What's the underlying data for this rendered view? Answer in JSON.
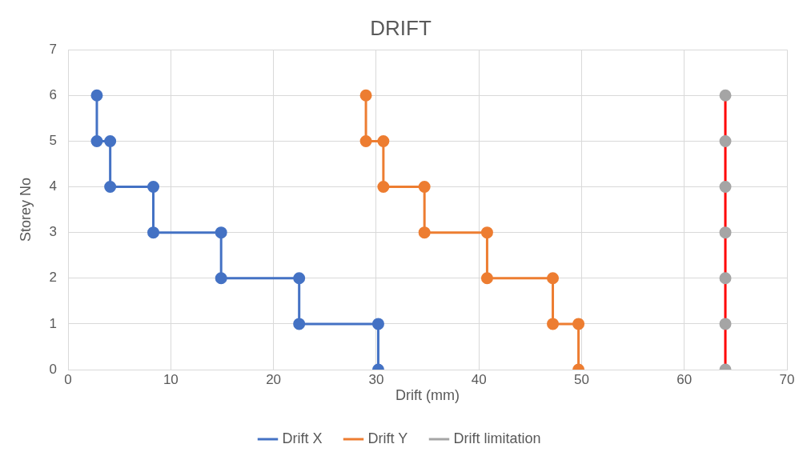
{
  "chart_data": {
    "type": "line",
    "title": "DRIFT",
    "xlabel": "Drift (mm)",
    "ylabel": "Storey No",
    "xlim": [
      0,
      70
    ],
    "xticks": [
      0,
      10,
      20,
      30,
      40,
      50,
      60,
      70
    ],
    "ylim": [
      0,
      7
    ],
    "yticks": [
      0,
      1,
      2,
      3,
      4,
      5,
      6,
      7
    ],
    "grid": true,
    "legend": "bottom",
    "marker": "circle",
    "line_style": "solid",
    "series": [
      {
        "name": "Drift X",
        "color": "#4472c4",
        "x": [
          30.2,
          30.2,
          22.5,
          22.5,
          14.9,
          14.9,
          8.3,
          8.3,
          4.1,
          4.1,
          2.8,
          2.8
        ],
        "values": [
          0,
          1,
          1,
          2,
          2,
          3,
          3,
          4,
          4,
          5,
          5,
          6
        ]
      },
      {
        "name": "Drift Y",
        "color": "#ed7d31",
        "x": [
          49.7,
          49.7,
          47.2,
          47.2,
          40.8,
          40.8,
          34.7,
          34.7,
          30.7,
          30.7,
          29,
          29
        ],
        "values": [
          0,
          1,
          1,
          2,
          2,
          3,
          3,
          4,
          4,
          5,
          5,
          6
        ]
      },
      {
        "name": "Drift limitation",
        "color": "#ff0000",
        "colors": [
          "#a5a5a5",
          "#a5a5a5",
          "#a5a5a5",
          "#a5a5a5",
          "#a5a5a5",
          "#a5a5a5",
          "#a5a5a5"
        ],
        "x": [
          64,
          64,
          64,
          64,
          64,
          64,
          64
        ],
        "values": [
          0,
          1,
          2,
          3,
          4,
          5,
          6
        ]
      }
    ]
  }
}
